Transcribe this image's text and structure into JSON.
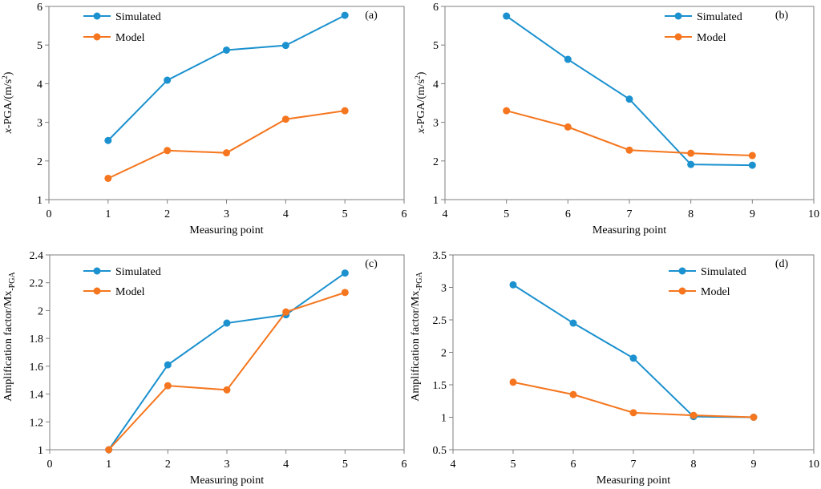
{
  "colors": {
    "simulated": "#1b91cf",
    "model": "#f5761e"
  },
  "chart_data": [
    {
      "panel_label": "(a)",
      "type": "line",
      "xlabel": "Measuring point",
      "ylabel_prefix": "x",
      "ylabel_rest": "-PGA/(m/s",
      "ylabel_sup": "2",
      "ylabel_end": ")",
      "xlim": [
        0,
        6
      ],
      "ylim": [
        1,
        6
      ],
      "xticks": [
        0,
        1,
        2,
        3,
        4,
        5,
        6
      ],
      "yticks": [
        1,
        2,
        3,
        4,
        5,
        6
      ],
      "xtick_labels": [
        "0",
        "1",
        "2",
        "3",
        "4",
        "5",
        "6"
      ],
      "ytick_labels": [
        "1",
        "2",
        "3",
        "4",
        "5",
        "6"
      ],
      "legend": [
        "Simulated",
        "Model"
      ],
      "series": [
        {
          "name": "Simulated",
          "x": [
            1,
            2,
            3,
            4,
            5
          ],
          "values": [
            2.53,
            4.09,
            4.87,
            4.99,
            5.77
          ]
        },
        {
          "name": "Model",
          "x": [
            1,
            2,
            3,
            4,
            5
          ],
          "values": [
            1.55,
            2.27,
            2.21,
            3.08,
            3.3
          ]
        }
      ]
    },
    {
      "panel_label": "(b)",
      "type": "line",
      "xlabel": "Measuring point",
      "ylabel_prefix": "x",
      "ylabel_rest": "-PGA/(m/s",
      "ylabel_sup": "2",
      "ylabel_end": ")",
      "xlim": [
        4,
        10
      ],
      "ylim": [
        1,
        6
      ],
      "xticks": [
        4,
        5,
        6,
        7,
        8,
        9,
        10
      ],
      "yticks": [
        1,
        2,
        3,
        4,
        5,
        6
      ],
      "xtick_labels": [
        "4",
        "5",
        "6",
        "7",
        "8",
        "9",
        "10"
      ],
      "ytick_labels": [
        "1",
        "2",
        "3",
        "4",
        "5",
        "6"
      ],
      "legend": [
        "Simulated",
        "Model"
      ],
      "series": [
        {
          "name": "Simulated",
          "x": [
            5,
            6,
            7,
            8,
            9
          ],
          "values": [
            5.75,
            4.63,
            3.6,
            1.91,
            1.89
          ]
        },
        {
          "name": "Model",
          "x": [
            5,
            6,
            7,
            8,
            9
          ],
          "values": [
            3.3,
            2.88,
            2.28,
            2.2,
            2.14
          ]
        }
      ]
    },
    {
      "panel_label": "(c)",
      "type": "line",
      "xlabel": "Measuring point",
      "ylabel_prefix": "",
      "ylabel_rest": "Amplification factor/Mx",
      "ylabel_sub": "-PGA",
      "xlim": [
        0,
        6
      ],
      "ylim": [
        1,
        2.4
      ],
      "xticks": [
        0,
        1,
        2,
        3,
        4,
        5,
        6
      ],
      "yticks": [
        1,
        1.2,
        1.4,
        1.6,
        1.8,
        2,
        2.2,
        2.4
      ],
      "xtick_labels": [
        "0",
        "1",
        "2",
        "3",
        "4",
        "5",
        "6"
      ],
      "ytick_labels": [
        "1",
        "1.2",
        "1.4",
        "1.6",
        "1.8",
        "2",
        "2.2",
        "2.4"
      ],
      "legend": [
        "Simulated",
        "Model"
      ],
      "series": [
        {
          "name": "Simulated",
          "x": [
            1,
            2,
            3,
            4,
            5
          ],
          "values": [
            1.0,
            1.61,
            1.91,
            1.97,
            2.27
          ]
        },
        {
          "name": "Model",
          "x": [
            1,
            2,
            3,
            4,
            5
          ],
          "values": [
            1.0,
            1.46,
            1.43,
            1.99,
            2.13
          ]
        }
      ]
    },
    {
      "panel_label": "(d)",
      "type": "line",
      "xlabel": "Measuring point",
      "ylabel_prefix": "",
      "ylabel_rest": "Amplification factor/Mx",
      "ylabel_sub": "-PGA",
      "xlim": [
        4,
        10
      ],
      "ylim": [
        0.5,
        3.5
      ],
      "xticks": [
        4,
        5,
        6,
        7,
        8,
        9,
        10
      ],
      "yticks": [
        0.5,
        1,
        1.5,
        2,
        2.5,
        3,
        3.5
      ],
      "xtick_labels": [
        "4",
        "5",
        "6",
        "7",
        "8",
        "9",
        "10"
      ],
      "ytick_labels": [
        "0.5",
        "1",
        "1.5",
        "2",
        "2.5",
        "3",
        "3.5"
      ],
      "legend": [
        "Simulated",
        "Model"
      ],
      "series": [
        {
          "name": "Simulated",
          "x": [
            5,
            6,
            7,
            8,
            9
          ],
          "values": [
            3.04,
            2.45,
            1.91,
            1.01,
            1.0
          ]
        },
        {
          "name": "Model",
          "x": [
            5,
            6,
            7,
            8,
            9
          ],
          "values": [
            1.54,
            1.35,
            1.07,
            1.03,
            1.0
          ]
        }
      ]
    }
  ]
}
